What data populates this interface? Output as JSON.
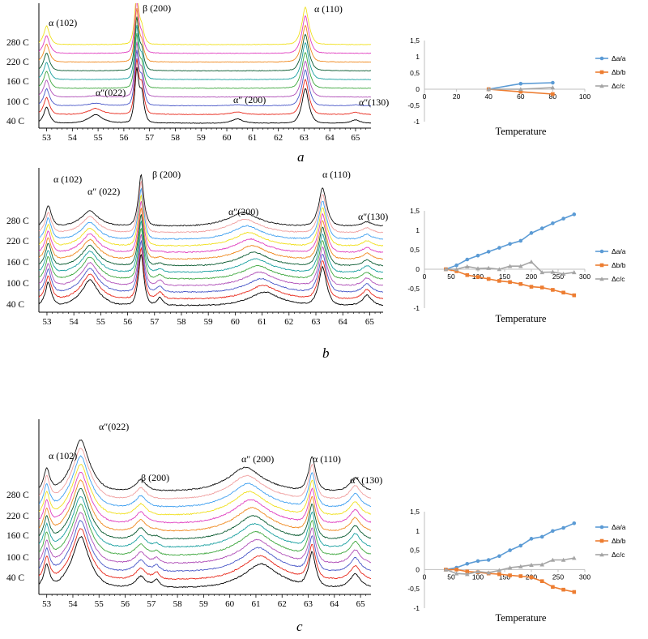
{
  "panels": [
    {
      "letter": "a",
      "xrd": {
        "type": "line",
        "title": "",
        "xlabel": "",
        "ylabel": "",
        "xlim": [
          52.7,
          65.6
        ],
        "x_ticks": [
          53,
          54,
          55,
          56,
          57,
          58,
          59,
          60,
          61,
          62,
          63,
          64,
          65
        ],
        "temp_labels": [
          "280 C",
          "220 C",
          "160 C",
          "100 C",
          "40 C"
        ],
        "peak_labels": [
          "α (102)",
          "β (200)",
          "α (110)",
          "α″(022)",
          "α″ (200)",
          "α″(130)"
        ],
        "num_traces": 10,
        "peaks": [
          {
            "c": 53.0,
            "w": 0.1,
            "h": [
              1.9,
              2.0,
              2.0,
              2.0,
              2.0,
              2.0,
              2.1,
              2.1,
              2.1,
              2.2
            ]
          },
          {
            "c": 54.9,
            "w": 0.24,
            "h": [
              1.0,
              0.7,
              0.3,
              0.15,
              0,
              0,
              0,
              0,
              0,
              0
            ]
          },
          {
            "c": 56.5,
            "w": 0.07,
            "h": [
              6,
              6,
              6,
              6,
              6,
              6,
              6,
              6,
              6,
              6
            ]
          },
          {
            "c": 56.7,
            "w": 0.08,
            "h": [
              3.3,
              3.2,
              3.0,
              2.8,
              2.6,
              2.4,
              2.2,
              2.0,
              1.9,
              1.8
            ]
          },
          {
            "c": 60.4,
            "w": 0.2,
            "h": [
              0.5,
              0.3,
              0.12,
              0,
              0,
              0,
              0,
              0,
              0,
              0
            ]
          },
          {
            "c": 63.05,
            "w": 0.12,
            "h": [
              4.1,
              4.1,
              4.2,
              4.2,
              4.2,
              4.3,
              4.3,
              4.3,
              4.4,
              4.4
            ]
          },
          {
            "c": 65.0,
            "w": 0.15,
            "h": [
              0.4,
              0.25,
              0.1,
              0,
              0,
              0,
              0,
              0,
              0,
              0
            ]
          }
        ],
        "noise": 0.03,
        "series_colors": [
          "#000000",
          "#e8291c",
          "#4a58c8",
          "#b050b8",
          "#40a840",
          "#1aa0a0",
          "#0a5a30",
          "#f08a20",
          "#e040c0",
          "#f0e020",
          "#40a0f0",
          "#f0a0a0",
          "#111111"
        ]
      },
      "trend": {
        "type": "line",
        "title": "",
        "xlabel": "Temperature",
        "ylabel": "",
        "xlim": [
          0,
          100
        ],
        "ylim": [
          -1,
          1.5
        ],
        "x_ticks": [
          "0",
          "20",
          "40",
          "60",
          "80",
          "100"
        ],
        "y_ticks": [
          "1,5",
          "1",
          "0,5",
          "0",
          "-0,5",
          "-1"
        ],
        "series": [
          {
            "name": "Δa/a",
            "color": "#5b9bd5",
            "marker": "circle",
            "x": [
              40,
              60,
              80
            ],
            "y": [
              0,
              0.17,
              0.2
            ]
          },
          {
            "name": "Δb/b",
            "color": "#ed7d31",
            "marker": "square",
            "x": [
              40,
              60,
              80
            ],
            "y": [
              0,
              -0.08,
              -0.15
            ]
          },
          {
            "name": "Δc/c",
            "color": "#a5a5a5",
            "marker": "triangle",
            "x": [
              40,
              60,
              80
            ],
            "y": [
              0,
              0.0,
              0.05
            ]
          }
        ]
      }
    },
    {
      "letter": "b",
      "xrd": {
        "type": "line",
        "title": "",
        "xlabel": "",
        "ylabel": "",
        "xlim": [
          52.7,
          65.5
        ],
        "x_ticks": [
          53,
          54,
          55,
          56,
          57,
          58,
          59,
          60,
          61,
          62,
          63,
          64,
          65
        ],
        "temp_labels": [
          "280 C",
          "220 C",
          "160 C",
          "100 C",
          "40 C"
        ],
        "peak_labels": [
          "α (102)",
          "α″ (022)",
          "β (200)",
          "α″(200)",
          "α (110)",
          "α″(130)"
        ],
        "num_traces": 13,
        "peaks": [
          {
            "c": 53.05,
            "w": 0.1,
            "h": [
              2.7,
              2.7,
              2.7,
              2.6,
              2.6,
              2.6,
              2.6,
              2.5,
              2.5,
              2.5,
              2.5,
              2.4,
              2.4
            ]
          },
          {
            "c": 54.6,
            "w": 0.28,
            "h": [
              3.0,
              2.9,
              2.8,
              2.7,
              2.6,
              2.5,
              2.4,
              2.3,
              2.2,
              2.1,
              2.0,
              1.9,
              1.8
            ]
          },
          {
            "c": 56.5,
            "w": 0.09,
            "h": [
              6,
              6,
              6,
              6,
              6,
              6,
              6,
              6,
              6,
              6,
              6,
              6,
              6
            ]
          },
          {
            "c": 57.2,
            "w": 0.1,
            "h": [
              0.9,
              0.8,
              0.7,
              0.6,
              0.5,
              0.4,
              0.3,
              0.2,
              0.1,
              0,
              0,
              0,
              0
            ]
          },
          {
            "c": 60.9,
            "w": 0.5,
            "h": [
              1.6,
              1.6,
              1.6,
              1.6,
              1.6,
              1.6,
              1.6,
              1.6,
              1.6,
              1.6,
              1.6,
              1.6,
              1.6
            ],
            "shift": [
              61.1,
              60.3
            ]
          },
          {
            "c": 63.25,
            "w": 0.13,
            "h": [
              4.5,
              4.5,
              4.5,
              4.5,
              4.5,
              4.5,
              4.5,
              4.5,
              4.5,
              4.5,
              4.5,
              4.5,
              4.5
            ]
          },
          {
            "c": 64.9,
            "w": 0.15,
            "h": [
              1.2,
              1.1,
              1.0,
              0.9,
              0.8,
              0.8,
              0.7,
              0.7,
              0.6,
              0.6,
              0.6,
              0.6,
              0.5
            ]
          }
        ],
        "noise": 0.06,
        "series_colors": [
          "#000000",
          "#e8291c",
          "#4a58c8",
          "#b050b8",
          "#40a840",
          "#1aa0a0",
          "#0a5a30",
          "#f08a20",
          "#e040c0",
          "#f0e020",
          "#40a0f0",
          "#f0a0a0",
          "#111111"
        ]
      },
      "trend": {
        "type": "line",
        "title": "",
        "xlabel": "Temperature",
        "ylabel": "",
        "xlim": [
          0,
          300
        ],
        "ylim": [
          -1,
          1.5
        ],
        "x_ticks": [
          "0",
          "50",
          "100",
          "150",
          "200",
          "250",
          "300"
        ],
        "y_ticks": [
          "1,5",
          "1",
          "0,5",
          "0",
          "-0,5",
          "-1"
        ],
        "series": [
          {
            "name": "Δa/a",
            "color": "#5b9bd5",
            "marker": "circle",
            "x": [
              40,
              60,
              80,
              100,
              120,
              140,
              160,
              180,
              200,
              220,
              240,
              260,
              280
            ],
            "y": [
              0,
              0.1,
              0.25,
              0.35,
              0.45,
              0.55,
              0.65,
              0.73,
              0.93,
              1.05,
              1.18,
              1.3,
              1.41
            ]
          },
          {
            "name": "Δb/b",
            "color": "#ed7d31",
            "marker": "square",
            "x": [
              40,
              60,
              80,
              100,
              120,
              140,
              160,
              180,
              200,
              220,
              240,
              260,
              280
            ],
            "y": [
              0,
              -0.05,
              -0.15,
              -0.2,
              -0.25,
              -0.3,
              -0.33,
              -0.38,
              -0.45,
              -0.47,
              -0.53,
              -0.6,
              -0.67
            ]
          },
          {
            "name": "Δc/c",
            "color": "#a5a5a5",
            "marker": "triangle",
            "x": [
              40,
              60,
              80,
              100,
              120,
              140,
              160,
              180,
              200,
              220,
              240,
              260,
              280
            ],
            "y": [
              0,
              0.0,
              0.07,
              0.02,
              0.03,
              0.0,
              0.08,
              0.08,
              0.19,
              -0.08,
              -0.07,
              -0.12,
              -0.08
            ]
          }
        ]
      }
    },
    {
      "letter": "c",
      "xrd": {
        "type": "line",
        "title": "",
        "xlabel": "",
        "ylabel": "",
        "xlim": [
          52.7,
          65.4
        ],
        "x_ticks": [
          53,
          54,
          55,
          56,
          57,
          58,
          59,
          60,
          61,
          62,
          63,
          64,
          65
        ],
        "temp_labels": [
          "280 C",
          "220 C",
          "160 C",
          "100 C",
          "40 C"
        ],
        "peak_labels": [
          "α (102)",
          "α″(022)",
          "β (200)",
          "α″ (200)",
          "α (110)",
          "α″ (130)"
        ],
        "num_traces": 13,
        "peaks": [
          {
            "c": 53.0,
            "w": 0.1,
            "h": [
              2.6,
              2.6,
              2.6,
              2.6,
              2.6,
              2.6,
              2.6,
              2.6,
              2.6,
              2.6,
              2.6,
              2.6,
              2.6
            ]
          },
          {
            "c": 54.3,
            "w": 0.3,
            "h": [
              6,
              6,
              6,
              6,
              6,
              6,
              6,
              6,
              6,
              6,
              6,
              6,
              6
            ]
          },
          {
            "c": 56.6,
            "w": 0.18,
            "h": [
              1.3,
              1.3,
              1.3,
              1.3,
              1.3,
              1.3,
              1.3,
              1.3,
              1.3,
              1.3,
              1.3,
              1.3,
              1.3
            ]
          },
          {
            "c": 57.2,
            "w": 0.1,
            "h": [
              0.9,
              0.8,
              0.7,
              0.6,
              0.5,
              0.4,
              0.3,
              0.2,
              0.1,
              0,
              0,
              0,
              0
            ]
          },
          {
            "c": 60.9,
            "w": 0.6,
            "h": [
              2.8,
              2.8,
              2.8,
              2.8,
              2.8,
              2.8,
              2.8,
              2.8,
              2.8,
              2.8,
              2.8,
              2.8,
              2.8
            ],
            "shift": [
              61.2,
              60.6
            ]
          },
          {
            "c": 63.15,
            "w": 0.12,
            "h": [
              4.0,
              4.0,
              4.0,
              4.0,
              4.0,
              4.0,
              4.0,
              4.0,
              4.0,
              4.0,
              4.0,
              4.0,
              4.0
            ]
          },
          {
            "c": 64.8,
            "w": 0.18,
            "h": [
              1.6,
              1.6,
              1.6,
              1.6,
              1.6,
              1.6,
              1.6,
              1.6,
              1.6,
              1.6,
              1.6,
              1.6,
              1.6
            ]
          }
        ],
        "noise": 0.06,
        "series_colors": [
          "#000000",
          "#e8291c",
          "#4a58c8",
          "#b050b8",
          "#40a840",
          "#1aa0a0",
          "#0a5a30",
          "#f08a20",
          "#e040c0",
          "#f0e020",
          "#40a0f0",
          "#f0a0a0",
          "#111111"
        ]
      },
      "trend": {
        "type": "line",
        "title": "",
        "xlabel": "Temperature",
        "ylabel": "",
        "xlim": [
          0,
          300
        ],
        "ylim": [
          -1,
          1.5
        ],
        "x_ticks": [
          "0",
          "50",
          "100",
          "150",
          "200",
          "250",
          "300"
        ],
        "y_ticks": [
          "1,5",
          "1",
          "0,5",
          "0",
          "-0,5",
          "-1"
        ],
        "series": [
          {
            "name": "Δa/a",
            "color": "#5b9bd5",
            "marker": "circle",
            "x": [
              40,
              60,
              80,
              100,
              120,
              140,
              160,
              180,
              200,
              220,
              240,
              260,
              280
            ],
            "y": [
              0,
              0.05,
              0.15,
              0.22,
              0.25,
              0.35,
              0.5,
              0.62,
              0.8,
              0.85,
              1.0,
              1.08,
              1.2
            ]
          },
          {
            "name": "Δb/b",
            "color": "#ed7d31",
            "marker": "square",
            "x": [
              40,
              60,
              80,
              100,
              120,
              140,
              160,
              180,
              200,
              220,
              240,
              260,
              280
            ],
            "y": [
              0,
              0.0,
              -0.05,
              -0.07,
              -0.1,
              -0.12,
              -0.15,
              -0.17,
              -0.2,
              -0.3,
              -0.45,
              -0.52,
              -0.58
            ]
          },
          {
            "name": "Δc/c",
            "color": "#a5a5a5",
            "marker": "triangle",
            "x": [
              40,
              60,
              80,
              100,
              120,
              140,
              160,
              180,
              200,
              220,
              240,
              260,
              280
            ],
            "y": [
              0,
              -0.1,
              -0.12,
              -0.05,
              -0.08,
              -0.02,
              0.05,
              0.08,
              0.12,
              0.13,
              0.25,
              0.25,
              0.3
            ]
          }
        ]
      }
    }
  ]
}
